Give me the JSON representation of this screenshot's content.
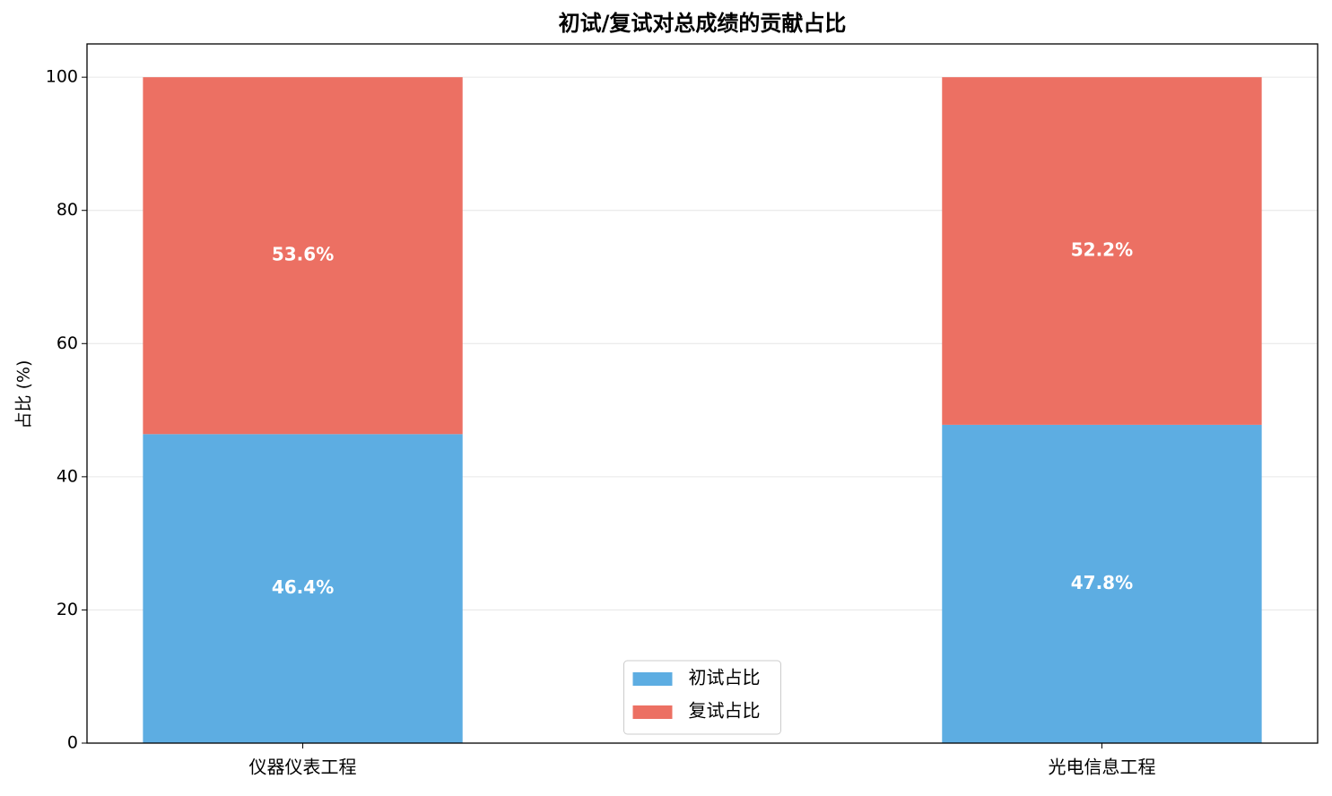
{
  "chart_data": {
    "type": "stacked_bar",
    "title": "初试/复试对总成绩的贡献占比",
    "ylabel": "占比 (%)",
    "categories": [
      "仪器仪表工程",
      "光电信息工程"
    ],
    "series": [
      {
        "name": "初试占比",
        "color": "#5dade2",
        "values": [
          46.4,
          47.8
        ],
        "value_labels": [
          "46.4%",
          "47.8%"
        ]
      },
      {
        "name": "复试占比",
        "color": "#ec7063",
        "values": [
          53.6,
          52.2
        ],
        "value_labels": [
          "53.6%",
          "52.2%"
        ]
      }
    ],
    "ylim": [
      0,
      105
    ],
    "yticks": [
      0,
      20,
      40,
      60,
      80,
      100
    ],
    "grid": true,
    "legend": "lower center"
  }
}
